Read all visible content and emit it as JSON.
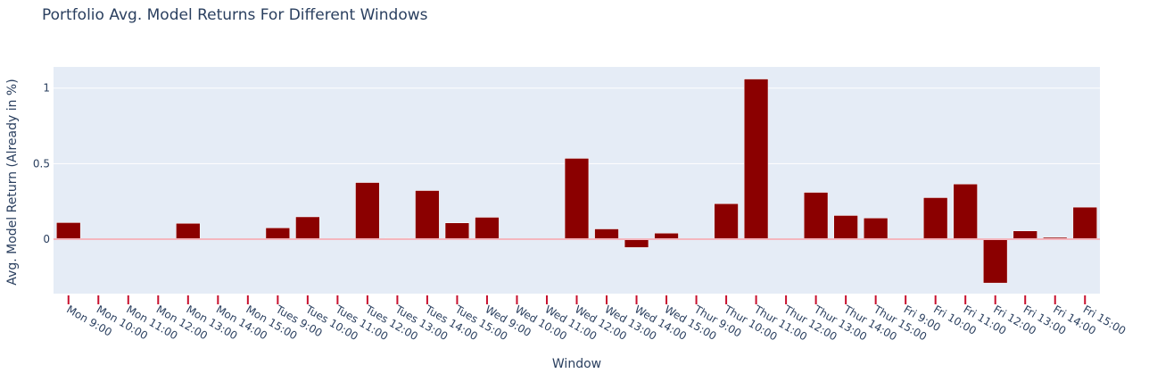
{
  "chart_data": {
    "type": "bar",
    "title": "Portfolio Avg. Model Returns For Different Windows",
    "xlabel": "Window",
    "ylabel": "Avg. Model Return (Already in %)",
    "ylim": [
      -0.36,
      1.14
    ],
    "yticks": [
      0,
      0.5,
      1
    ],
    "ytick_labels": [
      "0",
      "0.5",
      "1"
    ],
    "grid": true,
    "colors": {
      "bar": "#8b0000",
      "plot_bg": "#e5ecf6",
      "grid": "#ffffff",
      "zero_line": "#f4b6be",
      "tick_mark": "#c8102e",
      "text": "#2a3f5f"
    },
    "categories": [
      "Mon 9:00",
      "Mon 10:00",
      "Mon 11:00",
      "Mon 12:00",
      "Mon 13:00",
      "Mon 14:00",
      "Mon 15:00",
      "Tues 9:00",
      "Tues 10:00",
      "Tues 11:00",
      "Tues 12:00",
      "Tues 13:00",
      "Tues 14:00",
      "Tues 15:00",
      "Wed 9:00",
      "Wed 10:00",
      "Wed 11:00",
      "Wed 12:00",
      "Wed 13:00",
      "Wed 14:00",
      "Wed 15:00",
      "Thur 9:00",
      "Thur 10:00",
      "Thur 11:00",
      "Thur 12:00",
      "Thur 13:00",
      "Thur 14:00",
      "Thur 15:00",
      "Fri 9:00",
      "Fri 10:00",
      "Fri 11:00",
      "Fri 12:00",
      "Fri 13:00",
      "Fri 14:00",
      "Fri 15:00"
    ],
    "values": [
      0.11,
      0.0,
      0.002,
      0.001,
      0.105,
      0.002,
      0.003,
      0.075,
      0.148,
      0.0,
      0.375,
      0.008,
      0.322,
      0.108,
      0.145,
      0.003,
      0.002,
      0.535,
      0.068,
      -0.055,
      0.04,
      0.0,
      0.235,
      1.06,
      0.0,
      0.31,
      0.157,
      0.14,
      0.0,
      0.275,
      0.365,
      -0.29,
      0.055,
      0.012,
      0.212
    ]
  }
}
